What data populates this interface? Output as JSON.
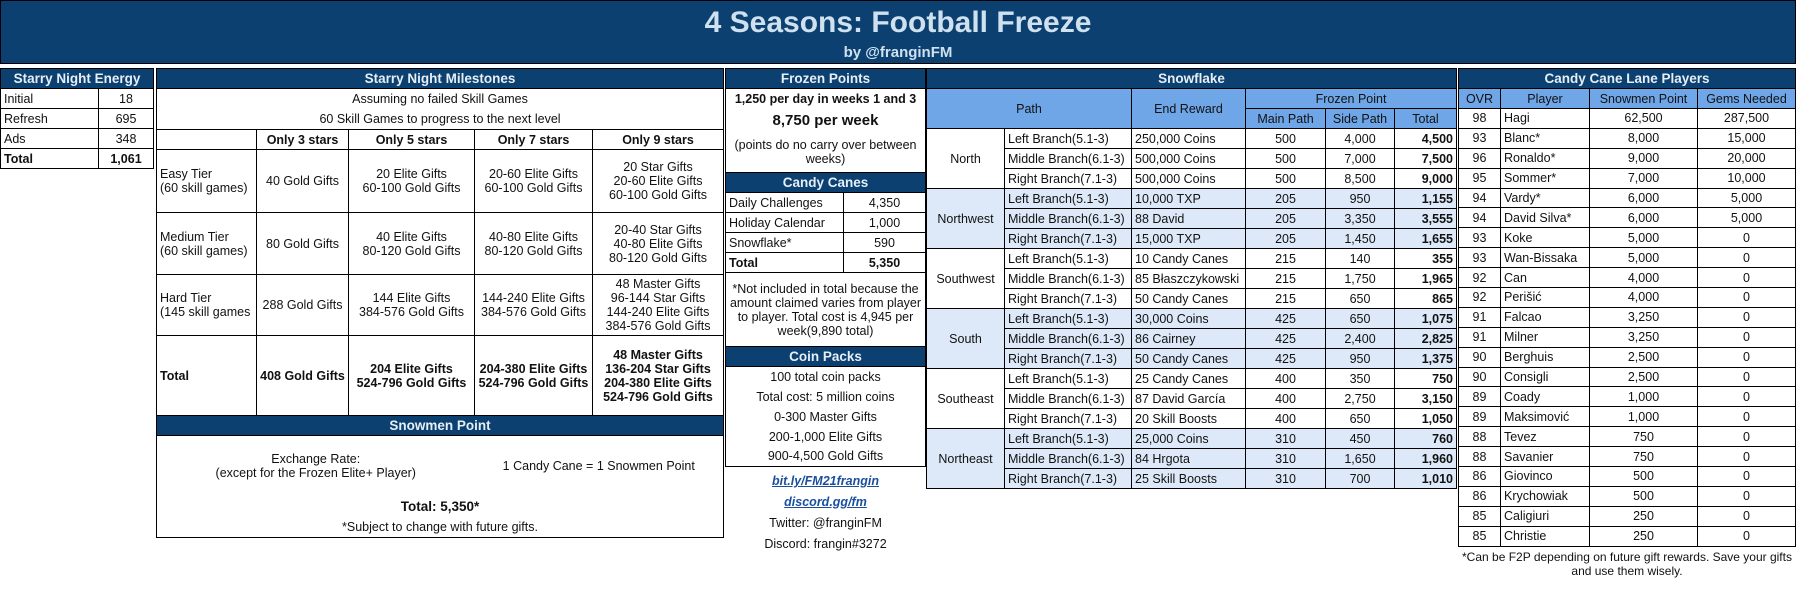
{
  "header": {
    "title": "4 Seasons: Football Freeze",
    "subtitle": "by @franginFM"
  },
  "colors": {
    "header_bg": "#0b4070",
    "light_blue": "#dde9f8",
    "mid_blue": "#6ea6e8"
  },
  "energy": {
    "title": "Starry Night Energy",
    "rows": [
      {
        "label": "Initial",
        "value": "18"
      },
      {
        "label": "Refresh",
        "value": "695"
      },
      {
        "label": "Ads",
        "value": "348"
      },
      {
        "label": "Total",
        "value": "1,061"
      }
    ]
  },
  "milestones": {
    "title": "Starry Night Milestones",
    "note1": "Assuming no failed Skill Games",
    "note2": "60 Skill Games to progress to the next level",
    "columns": [
      "Only 3 stars",
      "Only 5 stars",
      "Only 7 stars",
      "Only 9 stars"
    ],
    "rows": [
      {
        "tier": "Easy Tier\n(60 skill games)",
        "cells": [
          "40 Gold Gifts",
          "20 Elite Gifts\n60-100 Gold Gifts",
          "20-60 Elite Gifts\n60-100 Gold Gifts",
          "20 Star Gifts\n20-60 Elite Gifts\n60-100 Gold Gifts"
        ]
      },
      {
        "tier": "Medium Tier\n(60 skill games)",
        "cells": [
          "80 Gold Gifts",
          "40 Elite Gifts\n80-120 Gold Gifts",
          "40-80 Elite Gifts\n80-120 Gold Gifts",
          "20-40 Star Gifts\n40-80 Elite Gifts\n80-120 Gold Gifts"
        ]
      },
      {
        "tier": "Hard Tier\n(145 skill games",
        "cells": [
          "288 Gold Gifts",
          "144 Elite Gifts\n384-576 Gold Gifts",
          "144-240 Elite Gifts\n384-576 Gold Gifts",
          "48 Master Gifts\n96-144 Star Gifts\n144-240 Elite Gifts\n384-576 Gold Gifts"
        ]
      },
      {
        "tier": "Total",
        "cells": [
          "408 Gold Gifts",
          "204 Elite Gifts\n524-796 Gold Gifts",
          "204-380 Elite Gifts\n524-796 Gold Gifts",
          "48 Master Gifts\n136-204 Star Gifts\n204-380 Elite Gifts\n524-796 Gold Gifts"
        ]
      }
    ]
  },
  "snowmen": {
    "title": "Snowmen Point",
    "exchange_label": "Exchange Rate:\n(except for the Frozen Elite+ Player)",
    "exchange_value": "1 Candy Cane = 1 Snowmen Point",
    "total": "Total: 5,350*",
    "note": "*Subject to change with future gifts."
  },
  "frozen_points": {
    "title": "Frozen Points",
    "line1": "1,250 per day in weeks 1 and 3",
    "line2": "8,750 per week",
    "line3": "(points do no carry over between weeks)"
  },
  "candy_canes": {
    "title": "Candy Canes",
    "rows": [
      {
        "label": "Daily Challenges",
        "value": "4,350"
      },
      {
        "label": "Holiday Calendar",
        "value": "1,000"
      },
      {
        "label": "Snowflake*",
        "value": "590"
      },
      {
        "label": "Total",
        "value": "5,350"
      }
    ],
    "note": "*Not included in total because the amount claimed varies from player to player. Total cost is 4,945 per week(9,890 total)"
  },
  "coin_packs": {
    "title": "Coin Packs",
    "lines": [
      "100 total coin packs",
      "Total cost: 5 million coins",
      "0-300 Master Gifts",
      "200-1,000 Elite Gifts",
      "900-4,500 Gold Gifts"
    ]
  },
  "links": {
    "link1": "bit.ly/FM21frangin",
    "link2": "discord.gg/fm",
    "twitter": "Twitter: @franginFM",
    "discord": "Discord: frangin#3272"
  },
  "snowflake": {
    "title": "Snowflake",
    "col_path": "Path",
    "col_reward": "End Reward",
    "col_frozen": "Frozen Point",
    "col_main": "Main Path",
    "col_side": "Side Path",
    "col_total": "Total",
    "regions": [
      {
        "name": "North",
        "rows": [
          {
            "path": "Left Branch(5.1-3)",
            "reward": "250,000 Coins",
            "main": "500",
            "side": "4,000",
            "total": "4,500"
          },
          {
            "path": "Middle Branch(6.1-3)",
            "reward": "500,000 Coins",
            "main": "500",
            "side": "7,000",
            "total": "7,500"
          },
          {
            "path": "Right Branch(7.1-3)",
            "reward": "500,000 Coins",
            "main": "500",
            "side": "8,500",
            "total": "9,000"
          }
        ]
      },
      {
        "name": "Northwest",
        "rows": [
          {
            "path": "Left Branch(5.1-3)",
            "reward": "10,000 TXP",
            "main": "205",
            "side": "950",
            "total": "1,155"
          },
          {
            "path": "Middle Branch(6.1-3)",
            "reward": "88 David",
            "main": "205",
            "side": "3,350",
            "total": "3,555"
          },
          {
            "path": "Right Branch(7.1-3)",
            "reward": "15,000 TXP",
            "main": "205",
            "side": "1,450",
            "total": "1,655"
          }
        ]
      },
      {
        "name": "Southwest",
        "rows": [
          {
            "path": "Left Branch(5.1-3)",
            "reward": "10 Candy Canes",
            "main": "215",
            "side": "140",
            "total": "355"
          },
          {
            "path": "Middle Branch(6.1-3)",
            "reward": "85 Błaszczykowski",
            "main": "215",
            "side": "1,750",
            "total": "1,965"
          },
          {
            "path": "Right Branch(7.1-3)",
            "reward": "50 Candy Canes",
            "main": "215",
            "side": "650",
            "total": "865"
          }
        ]
      },
      {
        "name": "South",
        "rows": [
          {
            "path": "Left Branch(5.1-3)",
            "reward": "30,000 Coins",
            "main": "425",
            "side": "650",
            "total": "1,075"
          },
          {
            "path": "Middle Branch(6.1-3)",
            "reward": "86 Cairney",
            "main": "425",
            "side": "2,400",
            "total": "2,825"
          },
          {
            "path": "Right Branch(7.1-3)",
            "reward": "50 Candy Canes",
            "main": "425",
            "side": "950",
            "total": "1,375"
          }
        ]
      },
      {
        "name": "Southeast",
        "rows": [
          {
            "path": "Left Branch(5.1-3)",
            "reward": "25 Candy Canes",
            "main": "400",
            "side": "350",
            "total": "750"
          },
          {
            "path": "Middle Branch(6.1-3)",
            "reward": "87 David García",
            "main": "400",
            "side": "2,750",
            "total": "3,150"
          },
          {
            "path": "Right Branch(7.1-3)",
            "reward": "20 Skill Boosts",
            "main": "400",
            "side": "650",
            "total": "1,050"
          }
        ]
      },
      {
        "name": "Northeast",
        "rows": [
          {
            "path": "Left Branch(5.1-3)",
            "reward": "25,000 Coins",
            "main": "310",
            "side": "450",
            "total": "760"
          },
          {
            "path": "Middle Branch(6.1-3)",
            "reward": "84 Hrgota",
            "main": "310",
            "side": "1,650",
            "total": "1,960"
          },
          {
            "path": "Right Branch(7.1-3)",
            "reward": "25 Skill Boosts",
            "main": "310",
            "side": "700",
            "total": "1,010"
          }
        ]
      }
    ]
  },
  "players": {
    "title": "Candy Cane Lane Players",
    "columns": [
      "OVR",
      "Player",
      "Snowmen Point",
      "Gems Needed"
    ],
    "rows": [
      [
        "98",
        "Hagi",
        "62,500",
        "287,500"
      ],
      [
        "93",
        "Blanc*",
        "8,000",
        "15,000"
      ],
      [
        "96",
        "Ronaldo*",
        "9,000",
        "20,000"
      ],
      [
        "95",
        "Sommer*",
        "7,000",
        "10,000"
      ],
      [
        "94",
        "Vardy*",
        "6,000",
        "5,000"
      ],
      [
        "94",
        "David Silva*",
        "6,000",
        "5,000"
      ],
      [
        "93",
        "Koke",
        "5,000",
        "0"
      ],
      [
        "93",
        "Wan-Bissaka",
        "5,000",
        "0"
      ],
      [
        "92",
        "Can",
        "4,000",
        "0"
      ],
      [
        "92",
        "Perišić",
        "4,000",
        "0"
      ],
      [
        "91",
        "Falcao",
        "3,250",
        "0"
      ],
      [
        "91",
        "Milner",
        "3,250",
        "0"
      ],
      [
        "90",
        "Berghuis",
        "2,500",
        "0"
      ],
      [
        "90",
        "Consigli",
        "2,500",
        "0"
      ],
      [
        "89",
        "Coady",
        "1,000",
        "0"
      ],
      [
        "89",
        "Maksimović",
        "1,000",
        "0"
      ],
      [
        "88",
        "Tevez",
        "750",
        "0"
      ],
      [
        "88",
        "Savanier",
        "750",
        "0"
      ],
      [
        "86",
        "Giovinco",
        "500",
        "0"
      ],
      [
        "86",
        "Krychowiak",
        "500",
        "0"
      ],
      [
        "85",
        "Caligiuri",
        "250",
        "0"
      ],
      [
        "85",
        "Christie",
        "250",
        "0"
      ]
    ],
    "note": "*Can be F2P depending on future gift rewards. Save your gifts and use them wisely."
  }
}
